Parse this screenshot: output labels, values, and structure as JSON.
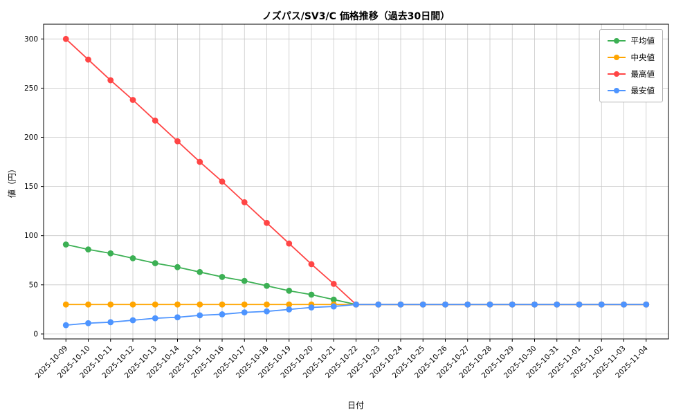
{
  "chart_data": {
    "type": "line",
    "title": "ノズパス/SV3/C 価格推移（過去30日間）",
    "xlabel": "日付",
    "ylabel": "値（円）",
    "grid": true,
    "legend_position": "upper right",
    "ylim": [
      -5,
      315
    ],
    "yticks": [
      0,
      50,
      100,
      150,
      200,
      250,
      300
    ],
    "categories": [
      "2025-10-09",
      "2025-10-10",
      "2025-10-11",
      "2025-10-12",
      "2025-10-13",
      "2025-10-14",
      "2025-10-15",
      "2025-10-16",
      "2025-10-17",
      "2025-10-18",
      "2025-10-19",
      "2025-10-20",
      "2025-10-21",
      "2025-10-22",
      "2025-10-23",
      "2025-10-24",
      "2025-10-25",
      "2025-10-26",
      "2025-10-27",
      "2025-10-28",
      "2025-10-29",
      "2025-10-30",
      "2025-10-31",
      "2025-11-01",
      "2025-11-02",
      "2025-11-03",
      "2025-11-04"
    ],
    "series": [
      {
        "key": "average",
        "name": "平均値",
        "color": "#3cb054",
        "values": [
          91,
          86,
          82,
          77,
          72,
          68,
          63,
          58,
          54,
          49,
          44,
          40,
          35,
          30,
          30,
          30,
          30,
          30,
          30,
          30,
          30,
          30,
          30,
          30,
          30,
          30,
          30
        ]
      },
      {
        "key": "median",
        "name": "中央値",
        "color": "#ffa500",
        "values": [
          30,
          30,
          30,
          30,
          30,
          30,
          30,
          30,
          30,
          30,
          30,
          30,
          30,
          30,
          30,
          30,
          30,
          30,
          30,
          30,
          30,
          30,
          30,
          30,
          30,
          30,
          30
        ]
      },
      {
        "key": "max",
        "name": "最高値",
        "color": "#ff4545",
        "values": [
          300,
          279,
          258,
          238,
          217,
          196,
          175,
          155,
          134,
          113,
          92,
          71,
          51,
          30,
          30,
          30,
          30,
          30,
          30,
          30,
          30,
          30,
          30,
          30,
          30,
          30,
          30
        ]
      },
      {
        "key": "min",
        "name": "最安値",
        "color": "#4d94ff",
        "values": [
          9,
          11,
          12,
          14,
          16,
          17,
          19,
          20,
          22,
          23,
          25,
          27,
          28,
          30,
          30,
          30,
          30,
          30,
          30,
          30,
          30,
          30,
          30,
          30,
          30,
          30,
          30
        ]
      }
    ]
  }
}
